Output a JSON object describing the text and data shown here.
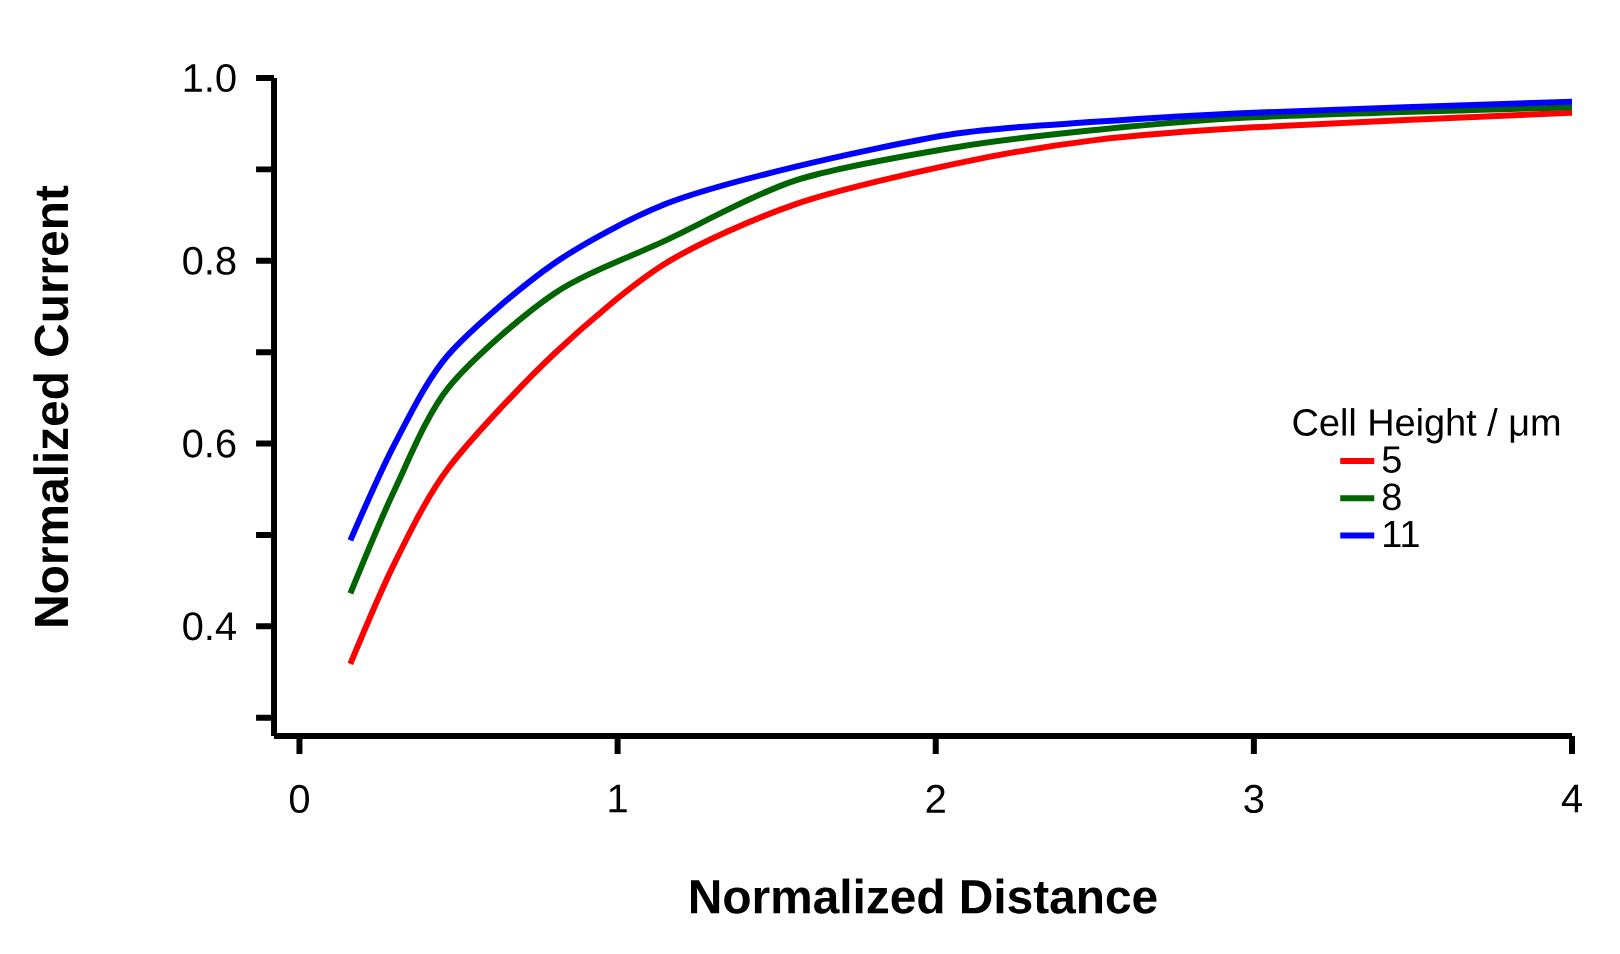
{
  "chart_data": {
    "type": "line",
    "xlabel": "Normalized Distance",
    "ylabel": "Normalized Current",
    "legend_title": "Cell Height / μm",
    "x": [
      0.16,
      0.3,
      0.47,
      0.8,
      1.15,
      1.56,
      2.06,
      2.5,
      3,
      4
    ],
    "series": [
      {
        "name": "5",
        "color": "#ff0000",
        "values": [
          0.359,
          0.47,
          0.574,
          0.698,
          0.797,
          0.862,
          0.906,
          0.932,
          0.946,
          0.962
        ]
      },
      {
        "name": "8",
        "color": "#006400",
        "values": [
          0.436,
          0.55,
          0.662,
          0.764,
          0.822,
          0.888,
          0.924,
          0.943,
          0.957,
          0.968
        ]
      },
      {
        "name": "11",
        "color": "#0000ff",
        "values": [
          0.494,
          0.6,
          0.698,
          0.797,
          0.862,
          0.903,
          0.939,
          0.952,
          0.962,
          0.974
        ]
      }
    ],
    "xlim": [
      -0.08,
      4
    ],
    "ylim": [
      0.28,
      1.0
    ],
    "xticks": [
      0,
      1,
      2,
      3,
      4
    ],
    "yticks": [
      {
        "value": 0.3,
        "label": null
      },
      0.4,
      {
        "value": 0.5,
        "label": null
      },
      0.6,
      {
        "value": 0.7,
        "label": null
      },
      0.8,
      {
        "value": 0.9,
        "label": null
      },
      {
        "value": 1.0,
        "label": "1.0"
      }
    ],
    "grid": false,
    "legend": "right",
    "marker": "none",
    "line_style": "solid"
  }
}
